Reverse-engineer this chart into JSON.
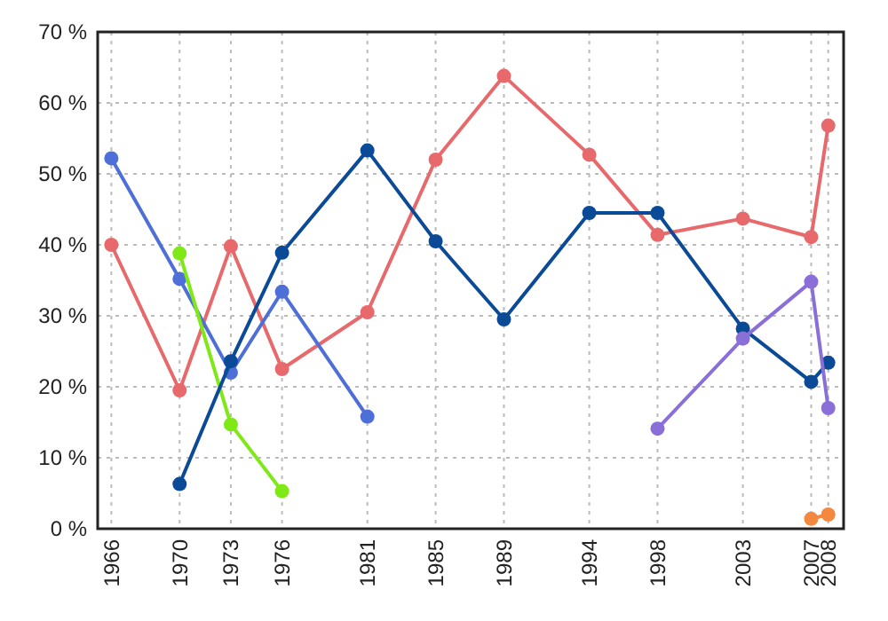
{
  "chart_data": {
    "type": "line",
    "xlim": [
      1965.2,
      2008.9
    ],
    "xticks": [
      1966,
      1970,
      1973,
      1976,
      1981,
      1985,
      1989,
      1994,
      1998,
      2003,
      2007,
      2008
    ],
    "ylim": [
      0,
      70
    ],
    "yticks": [
      {
        "value": 0,
        "label": "0 %"
      },
      {
        "value": 10,
        "label": "10 %"
      },
      {
        "value": 20,
        "label": "20 %"
      },
      {
        "value": 30,
        "label": "30 %"
      },
      {
        "value": 40,
        "label": "40 %"
      },
      {
        "value": 50,
        "label": "50 %"
      },
      {
        "value": 60,
        "label": "60 %"
      },
      {
        "value": 70,
        "label": "70 %"
      }
    ],
    "grid": true,
    "marker": "circle",
    "line_style": "solid",
    "series": [
      {
        "color": "#e8696b",
        "x": [
          1966,
          1970,
          1973,
          1976,
          1981,
          1985,
          1989,
          1994,
          1998,
          2003,
          2007,
          2008
        ],
        "values": [
          40,
          19.5,
          39.8,
          22.5,
          30.5,
          52,
          63.8,
          52.7,
          41.4,
          43.7,
          41.1,
          56.8
        ]
      },
      {
        "color": "#4f6fd8",
        "x": [
          1966,
          1970,
          1973,
          1976,
          1981
        ],
        "values": [
          52.2,
          35.2,
          22,
          33.4,
          15.8
        ]
      },
      {
        "color": "#7fe817",
        "x": [
          1970,
          1973,
          1976
        ],
        "values": [
          38.8,
          14.7,
          5.3
        ]
      },
      {
        "color": "#0b4a96",
        "x": [
          1970,
          1973,
          1976,
          1981,
          1985,
          1989,
          1994,
          1998,
          2003,
          2007,
          2008
        ],
        "values": [
          6.3,
          23.6,
          38.9,
          53.3,
          40.5,
          29.5,
          44.5,
          44.5,
          28.2,
          20.7,
          23.4
        ]
      },
      {
        "color": "#8a6fd8",
        "x": [
          1998,
          2003,
          2007,
          2008
        ],
        "values": [
          14.1,
          26.8,
          34.8,
          17
        ]
      },
      {
        "color": "#f5883f",
        "x": [
          2007,
          2008
        ],
        "values": [
          1.4,
          2
        ]
      }
    ]
  }
}
